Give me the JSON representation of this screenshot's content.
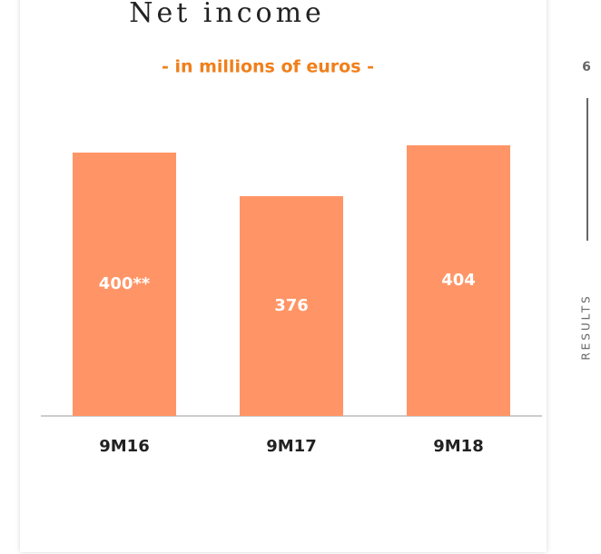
{
  "page_number": "6",
  "section": "RESULTS",
  "chart_data": {
    "type": "bar",
    "title": "Net income",
    "subtitle": "- in millions of euros -",
    "categories": [
      "9M16",
      "9M17",
      "9M18"
    ],
    "values": [
      400,
      376,
      404
    ],
    "value_labels": [
      "400**",
      "376",
      "404"
    ],
    "color": "#ff9566",
    "ylim": [
      255,
      420
    ]
  }
}
